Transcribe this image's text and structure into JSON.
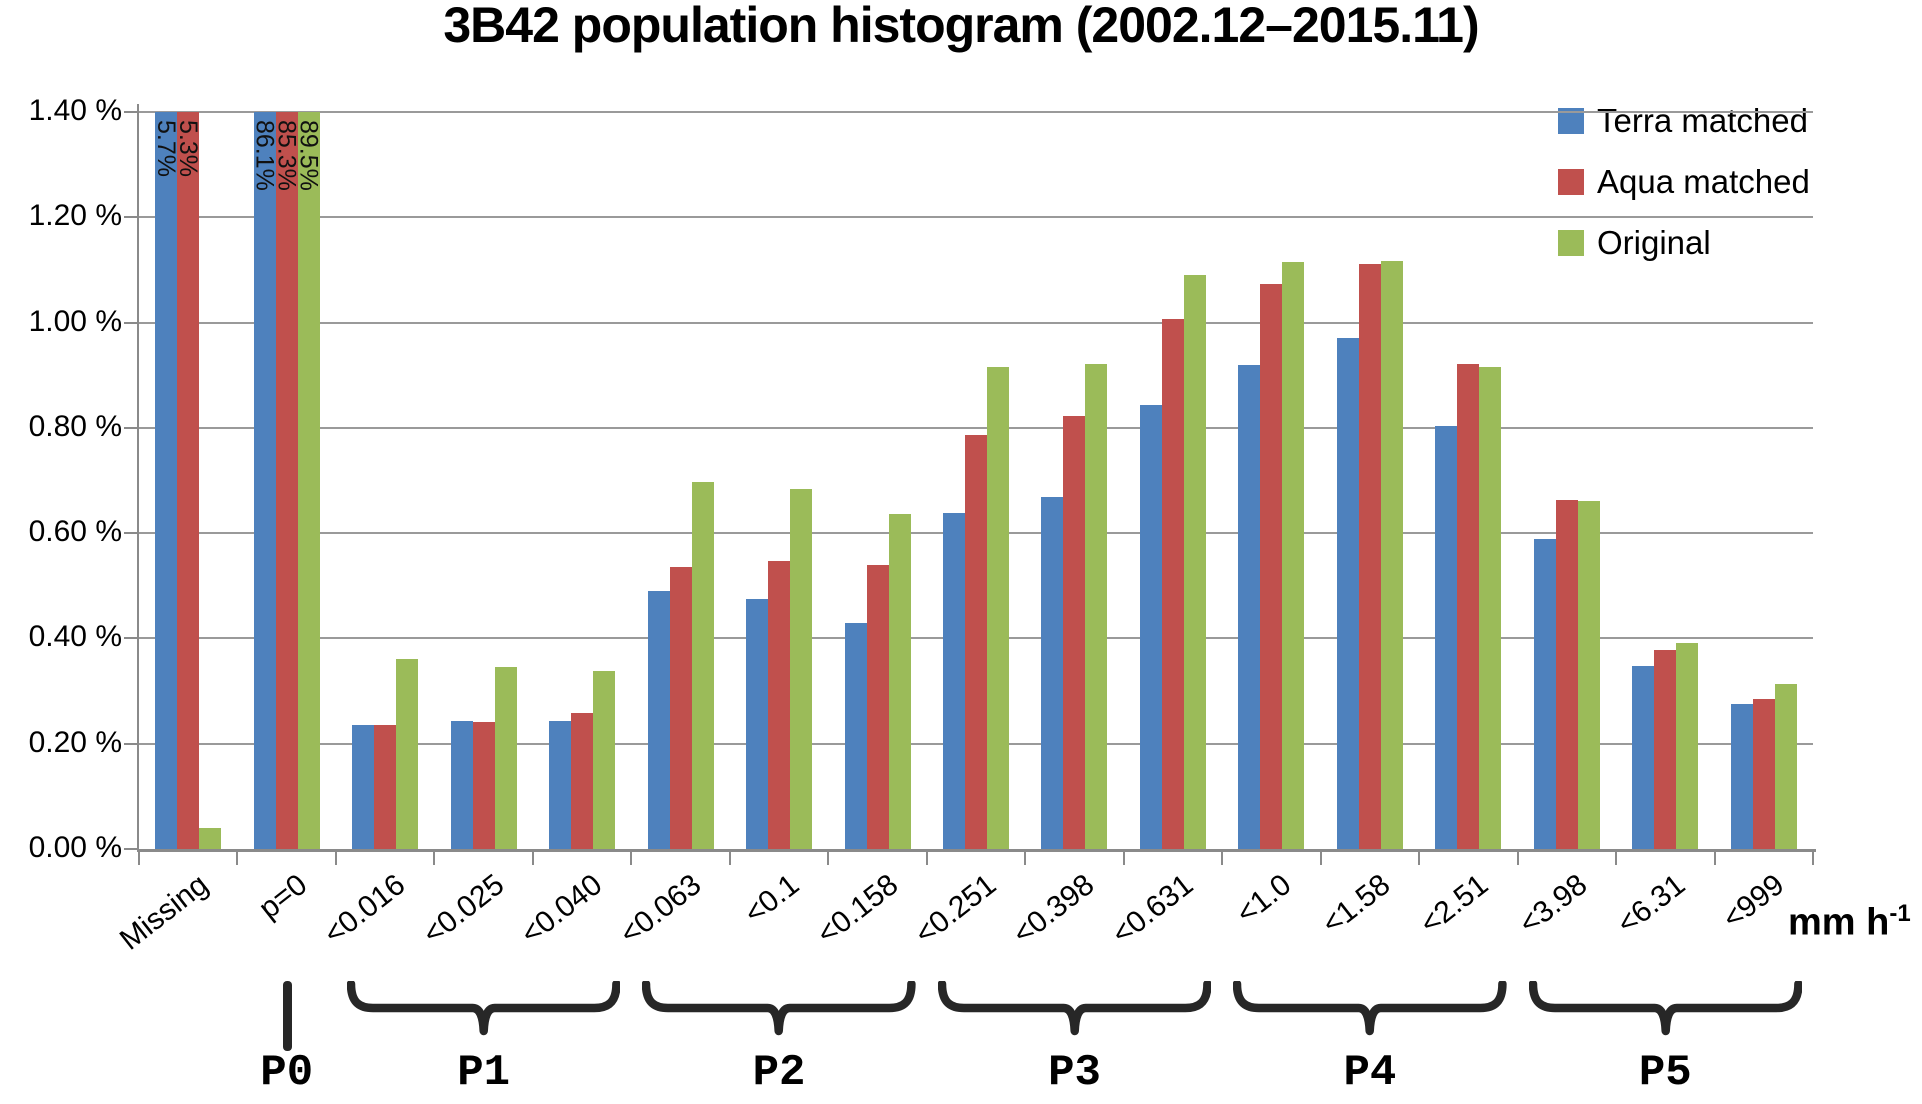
{
  "title": "3B42 population histogram (2002.12–2015.11)",
  "chart_data": {
    "type": "bar",
    "title": "3B42 population histogram (2002.12–2015.11)",
    "xlabel": "",
    "ylabel": "",
    "x_unit_text": "mm h",
    "x_unit_sup": "-1",
    "ylim": [
      0,
      1.4
    ],
    "ytick_step": 0.2,
    "grid": "horizontal",
    "legend_position": "top-right",
    "ytick_labels": [
      "0.00 %",
      "0.20 %",
      "0.40 %",
      "0.60 %",
      "0.80 %",
      "1.00 %",
      "1.20 %",
      "1.40 %"
    ],
    "categories": [
      "Missing",
      "p=0",
      "<0.016",
      "<0.025",
      "<0.040",
      "<0.063",
      "<0.1",
      "<0.158",
      "<0.251",
      "<0.398",
      "<0.631",
      "<1.0",
      "<1.58",
      "<2.51",
      "<3.98",
      "<6.31",
      "<999"
    ],
    "series": [
      {
        "name": "Terra matched",
        "color": "#4E81BD",
        "values": [
          5.7,
          86.1,
          0.235,
          0.243,
          0.243,
          0.49,
          0.475,
          0.43,
          0.638,
          0.668,
          0.843,
          0.92,
          0.97,
          0.803,
          0.588,
          0.348,
          0.276
        ],
        "bar_labels": [
          "5.7%",
          "86.1%",
          null,
          null,
          null,
          null,
          null,
          null,
          null,
          null,
          null,
          null,
          null,
          null,
          null,
          null,
          null
        ]
      },
      {
        "name": "Aqua matched",
        "color": "#C0504D",
        "values": [
          5.3,
          85.3,
          0.235,
          0.241,
          0.258,
          0.536,
          0.548,
          0.54,
          0.787,
          0.823,
          1.007,
          1.073,
          1.112,
          0.922,
          0.663,
          0.378,
          0.284
        ],
        "bar_labels": [
          "5.3%",
          "85.3%",
          null,
          null,
          null,
          null,
          null,
          null,
          null,
          null,
          null,
          null,
          null,
          null,
          null,
          null,
          null
        ]
      },
      {
        "name": "Original",
        "color": "#9BBB59",
        "values": [
          0.04,
          89.5,
          0.361,
          0.345,
          0.338,
          0.698,
          0.683,
          0.636,
          0.915,
          0.922,
          1.09,
          1.115,
          1.117,
          0.916,
          0.661,
          0.392,
          0.313
        ],
        "bar_labels": [
          null,
          "89.5%",
          null,
          null,
          null,
          null,
          null,
          null,
          null,
          null,
          null,
          null,
          null,
          null,
          null,
          null,
          null
        ]
      }
    ],
    "groups": [
      {
        "label": "P0",
        "type": "tick",
        "start": 1,
        "end": 1
      },
      {
        "label": "P1",
        "type": "brace",
        "start": 2,
        "end": 4
      },
      {
        "label": "P2",
        "type": "brace",
        "start": 5,
        "end": 7
      },
      {
        "label": "P3",
        "type": "brace",
        "start": 8,
        "end": 10
      },
      {
        "label": "P4",
        "type": "brace",
        "start": 11,
        "end": 13
      },
      {
        "label": "P5",
        "type": "brace",
        "start": 14,
        "end": 16
      }
    ]
  }
}
